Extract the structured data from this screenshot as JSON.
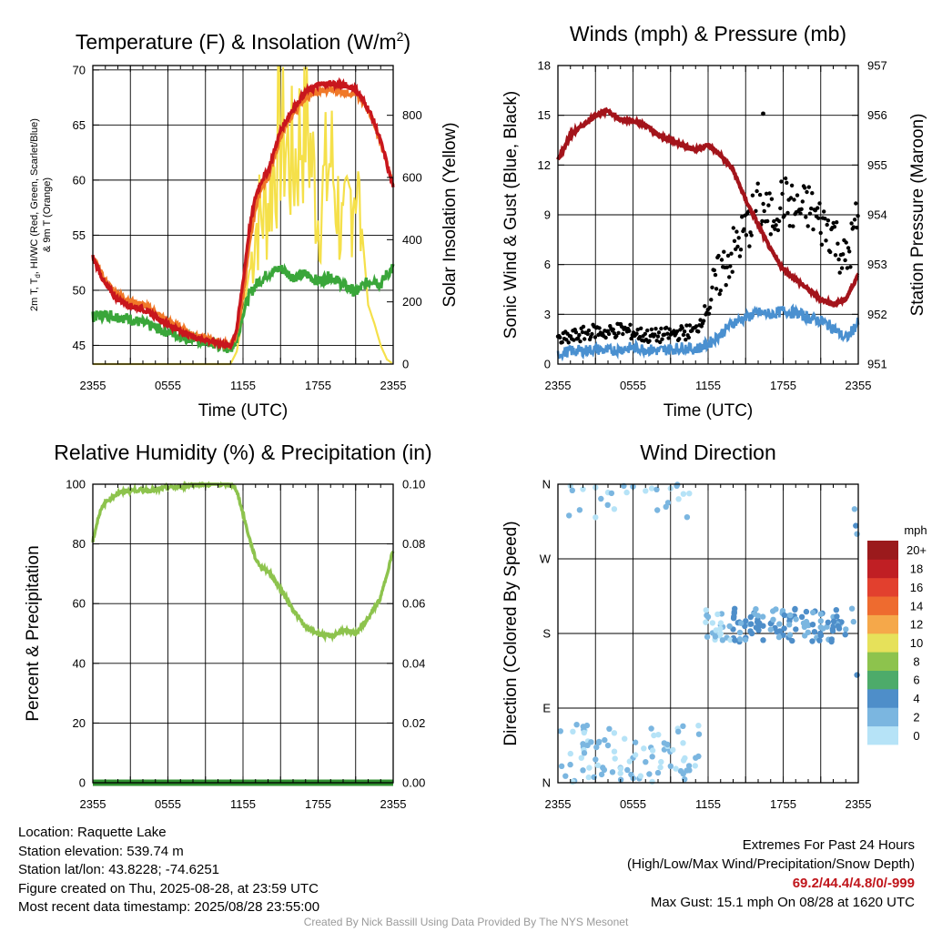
{
  "x_tick_labels": [
    "2355",
    "0555",
    "1155",
    "1755",
    "2355"
  ],
  "panels": {
    "temperature": {
      "title_main": "Temperature (F) & Insolation (W/m",
      "title_sup": "2",
      "title_end": ")",
      "xlabel": "Time (UTC)",
      "ylabel_left_1": "2m T, T",
      "ylabel_left_sub": "d",
      "ylabel_left_2": ", HI/WC (Red, Green, Scarlet/Blue)",
      "ylabel_left_line2": "& 9m T (Orange)",
      "ylabel_right": "Solar Insolation (Yellow)",
      "left_ticks": [
        "45",
        "50",
        "55",
        "60",
        "65",
        "70"
      ],
      "right_ticks": [
        "0",
        "200",
        "400",
        "600",
        "800"
      ]
    },
    "winds": {
      "title": "Winds (mph) & Pressure (mb)",
      "xlabel": "Time (UTC)",
      "ylabel_left": "Sonic Wind & Gust (Blue, Black)",
      "ylabel_right": "Station Pressure (Maroon)",
      "left_ticks": [
        "0",
        "3",
        "6",
        "9",
        "12",
        "15",
        "18"
      ],
      "right_ticks": [
        "951",
        "952",
        "953",
        "954",
        "955",
        "956",
        "957"
      ]
    },
    "humidity": {
      "title": "Relative Humidity (%) & Precipitation (in)",
      "ylabel_left": "Percent & Precipitation",
      "left_ticks": [
        "0",
        "20",
        "40",
        "60",
        "80",
        "100"
      ],
      "right_ticks": [
        "0.00",
        "0.02",
        "0.04",
        "0.06",
        "0.08",
        "0.10"
      ]
    },
    "direction": {
      "title": "Wind Direction",
      "ylabel_left": "Direction (Colored By Speed)",
      "left_ticks": [
        "N",
        "E",
        "S",
        "W",
        "N"
      ],
      "legend_title": "mph",
      "legend_labels": [
        "0",
        "2",
        "4",
        "6",
        "8",
        "10",
        "12",
        "14",
        "16",
        "18",
        "20+"
      ],
      "legend_colors": [
        "#b6e3f7",
        "#7bb6e0",
        "#4e8ec9",
        "#4dab6a",
        "#8dc34d",
        "#e6e15a",
        "#f5a84a",
        "#ee6b2f",
        "#e2402e",
        "#c01f24",
        "#9b1a1c"
      ]
    }
  },
  "info_left": {
    "location": "Location: Raquette Lake",
    "elevation": "Station elevation: 539.74 m",
    "latlon": "Station lat/lon: 43.8228; -74.6251",
    "created": "Figure created on Thu, 2025-08-28, at 23:59 UTC",
    "recent": "Most recent data timestamp: 2025/08/28 23:55:00"
  },
  "info_right": {
    "heading": "Extremes For Past 24 Hours",
    "subheading": "(High/Low/Max Wind/Precipitation/Snow Depth)",
    "values": "69.2/44.4/4.8/0/-999",
    "max_gust": "Max Gust: 15.1 mph On 08/28 at 1620 UTC"
  },
  "credit": "Created By Nick Bassill Using Data Provided By The NYS Mesonet",
  "colors": {
    "temp_red": "#c8161d",
    "dewpoint_green": "#3aa63a",
    "temp_9m_orange": "#f07828",
    "insolation_yellow": "#f5e04a",
    "sonic_wind_blue": "#4a90d0",
    "gust_black": "#000000",
    "pressure_maroon": "#a3141b",
    "rh_green": "#8dc34d",
    "precip_green": "#2f8f2f",
    "extremes_red": "#c0151b"
  },
  "chart_data": [
    {
      "type": "line",
      "title": "Temperature (F) & Insolation (W/m2)",
      "xlabel": "Time (UTC)",
      "ylabel": "2m T, Td, HI/WC (Red, Green, Scarlet/Blue) & 9m T (Orange)",
      "ylabel_right": "Solar Insolation (Yellow)",
      "xlim": [
        0,
        24
      ],
      "ylim": [
        43.3,
        70.4
      ],
      "ylim_right": [
        0,
        960
      ],
      "x_hours_since_2355": [
        0,
        1,
        2,
        3,
        4,
        5,
        6,
        7,
        8,
        9,
        10,
        11,
        11.5,
        12,
        12.5,
        13,
        13.5,
        14,
        15,
        16,
        17,
        18,
        19,
        20,
        21,
        22,
        22.5,
        23,
        23.5,
        24
      ],
      "series": [
        {
          "name": "2m T",
          "values": [
            53.0,
            50.5,
            49.2,
            48.6,
            48.3,
            47.6,
            46.9,
            46.3,
            45.8,
            45.5,
            45.2,
            44.9,
            46.5,
            50.8,
            55.5,
            58.5,
            60.0,
            60.8,
            64.5,
            66.5,
            68.0,
            68.6,
            68.8,
            68.6,
            68.3,
            66.5,
            65.2,
            63.5,
            61.5,
            59.2
          ]
        },
        {
          "name": "9m T",
          "values": [
            53.0,
            50.8,
            49.6,
            49.0,
            48.7,
            48.0,
            47.2,
            46.6,
            46.0,
            45.6,
            45.3,
            45.0,
            46.0,
            49.5,
            54.0,
            57.5,
            59.5,
            60.2,
            64.0,
            66.0,
            67.6,
            68.0,
            68.2,
            68.0,
            67.8,
            66.4,
            65.1,
            63.4,
            61.5,
            59.4
          ]
        },
        {
          "name": "Td",
          "values": [
            47.6,
            47.8,
            47.6,
            47.4,
            47.0,
            46.6,
            46.2,
            45.9,
            45.6,
            45.3,
            45.0,
            44.7,
            45.5,
            48.0,
            49.5,
            50.5,
            51.0,
            51.5,
            52.0,
            51.2,
            51.5,
            50.8,
            51.3,
            50.5,
            49.8,
            50.8,
            51.0,
            50.5,
            51.5,
            52.0
          ]
        },
        {
          "name": "Insolation",
          "values": [
            0,
            0,
            0,
            0,
            0,
            0,
            0,
            0,
            0,
            0,
            0,
            0,
            40,
            160,
            300,
            480,
            520,
            560,
            820,
            680,
            890,
            520,
            720,
            430,
            680,
            190,
            130,
            60,
            15,
            0
          ]
        }
      ]
    },
    {
      "type": "line",
      "title": "Winds (mph) & Pressure (mb)",
      "xlabel": "Time (UTC)",
      "ylabel": "Sonic Wind & Gust (Blue, Black)",
      "ylabel_right": "Station Pressure (Maroon)",
      "xlim": [
        0,
        24
      ],
      "ylim": [
        0,
        18
      ],
      "ylim_right": [
        951,
        957
      ],
      "x_hours_since_2355": [
        0,
        1,
        2,
        3,
        4,
        5,
        6,
        7,
        8,
        9,
        10,
        11,
        12,
        13,
        14,
        15,
        16,
        17,
        18,
        19,
        20,
        21,
        22,
        23,
        24
      ],
      "series": [
        {
          "name": "Sonic Wind",
          "values": [
            0.6,
            0.8,
            0.8,
            0.9,
            0.8,
            0.9,
            1.0,
            0.9,
            0.8,
            0.9,
            1.0,
            0.9,
            1.2,
            1.8,
            2.5,
            2.8,
            3.1,
            3.0,
            3.2,
            3.1,
            2.8,
            2.6,
            2.2,
            1.5,
            2.5
          ]
        },
        {
          "name": "Gust",
          "values": [
            1.4,
            1.6,
            1.8,
            2.0,
            1.9,
            2.1,
            1.9,
            1.7,
            1.7,
            1.8,
            1.9,
            2.0,
            3.5,
            5.5,
            6.8,
            8.0,
            9.5,
            8.8,
            10.0,
            9.2,
            9.5,
            8.5,
            8.0,
            6.0,
            9.0
          ]
        },
        {
          "name": "Station Pressure",
          "values": [
            955.1,
            955.6,
            955.8,
            956.0,
            956.1,
            955.9,
            955.9,
            955.8,
            955.6,
            955.5,
            955.4,
            955.3,
            955.4,
            955.2,
            954.9,
            954.3,
            953.8,
            953.3,
            952.9,
            952.7,
            952.5,
            952.3,
            952.2,
            952.3,
            952.8
          ]
        }
      ],
      "max_gust": {
        "x": 16.4,
        "y": 15.1
      }
    },
    {
      "type": "line",
      "title": "Relative Humidity (%) & Precipitation (in)",
      "ylabel": "Percent & Precipitation",
      "xlim": [
        0,
        24
      ],
      "ylim": [
        0,
        100
      ],
      "ylim_right": [
        0,
        0.1
      ],
      "x_hours_since_2355": [
        0,
        0.5,
        1,
        2,
        3,
        4,
        5,
        6,
        7,
        8,
        9,
        10,
        11,
        11.5,
        12,
        12.5,
        13,
        13.5,
        14,
        15,
        16,
        17,
        18,
        19,
        20,
        21,
        22,
        23,
        24
      ],
      "series": [
        {
          "name": "Relative Humidity",
          "values": [
            81,
            90,
            94,
            97,
            98,
            98,
            98,
            99,
            99,
            100,
            100,
            100,
            100,
            98,
            90,
            82,
            75,
            72,
            71,
            65,
            58,
            52,
            50,
            49,
            51,
            50,
            55,
            62,
            78
          ]
        },
        {
          "name": "Precipitation",
          "values": [
            0,
            0,
            0,
            0,
            0,
            0,
            0,
            0,
            0,
            0,
            0,
            0,
            0,
            0,
            0,
            0,
            0,
            0,
            0,
            0,
            0,
            0,
            0,
            0,
            0,
            0,
            0,
            0,
            0
          ]
        }
      ]
    },
    {
      "type": "scatter",
      "title": "Wind Direction",
      "ylabel": "Direction (Colored By Speed)",
      "xlim": [
        0,
        24
      ],
      "ylim": [
        0,
        360
      ],
      "series": [
        {
          "name": "Direction",
          "points": [
            [
              0.3,
              20,
              1
            ],
            [
              0.6,
              8,
              1
            ],
            [
              1.0,
              35,
              0.5
            ],
            [
              1.5,
              70,
              1
            ],
            [
              2.0,
              15,
              1
            ],
            [
              2.4,
              50,
              0.5
            ],
            [
              3.0,
              28,
              1
            ],
            [
              3.5,
              10,
              1
            ],
            [
              4.0,
              45,
              1
            ],
            [
              4.5,
              60,
              0.5
            ],
            [
              5.0,
              18,
              1
            ],
            [
              5.5,
              350,
              0.5
            ],
            [
              6.0,
              30,
              1
            ],
            [
              6.5,
              5,
              1
            ],
            [
              7.0,
              25,
              1
            ],
            [
              7.5,
              355,
              0.5
            ],
            [
              8.0,
              12,
              2
            ],
            [
              8.5,
              40,
              1
            ],
            [
              9.0,
              20,
              1
            ],
            [
              9.5,
              358,
              1
            ],
            [
              10.0,
              48,
              0.5
            ],
            [
              10.5,
              15,
              1
            ],
            [
              11.0,
              30,
              1
            ],
            [
              1.0,
              358,
              0.5
            ],
            [
              2.0,
              354,
              0.5
            ],
            [
              3.0,
              356,
              0.5
            ],
            [
              4.0,
              350,
              0.5
            ],
            [
              6.0,
              357,
              1
            ],
            [
              7.0,
              352,
              0.5
            ],
            [
              9.0,
              355,
              0.5
            ],
            [
              3.0,
              320,
              0.5
            ],
            [
              4.5,
              330,
              0.5
            ],
            [
              12.0,
              200,
              1
            ],
            [
              12.5,
              180,
              1
            ],
            [
              13.0,
              190,
              2
            ],
            [
              13.5,
              175,
              2
            ],
            [
              14.0,
              185,
              3
            ],
            [
              14.5,
              170,
              3
            ],
            [
              15.0,
              195,
              3
            ],
            [
              15.5,
              180,
              4
            ],
            [
              16.0,
              188,
              3
            ],
            [
              16.4,
              172,
              4
            ],
            [
              17.0,
              192,
              3
            ],
            [
              17.5,
              182,
              4
            ],
            [
              18.0,
              178,
              3
            ],
            [
              18.5,
              195,
              3
            ],
            [
              19.0,
              185,
              3
            ],
            [
              19.5,
              200,
              3
            ],
            [
              20.0,
              190,
              3
            ],
            [
              20.5,
              182,
              3
            ],
            [
              21.0,
              195,
              2
            ],
            [
              21.5,
              188,
              2
            ],
            [
              22.0,
              200,
              2
            ],
            [
              22.5,
              190,
              2
            ],
            [
              23.0,
              185,
              1
            ],
            [
              23.5,
              210,
              2
            ],
            [
              23.7,
              330,
              2
            ],
            [
              23.8,
              310,
              3
            ],
            [
              23.9,
              300,
              2
            ],
            [
              23.9,
              130,
              3
            ]
          ]
        }
      ]
    }
  ]
}
